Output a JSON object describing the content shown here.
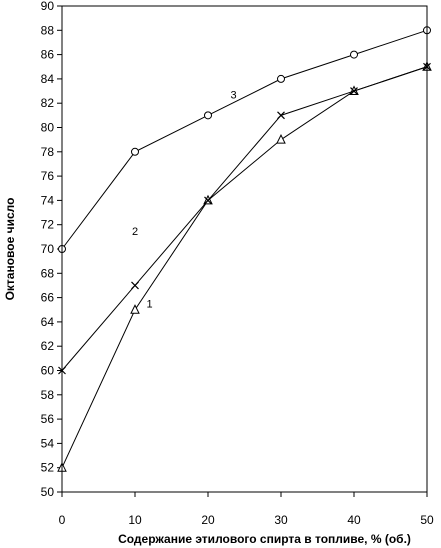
{
  "chart_data": {
    "type": "line",
    "title": "",
    "xlabel": "Содержание этилового спирта в топливе, % (об.)",
    "ylabel": "Октановое число",
    "xlim": [
      0,
      50
    ],
    "ylim": [
      50,
      90
    ],
    "x_ticks": [
      0,
      10,
      20,
      30,
      40,
      50
    ],
    "y_ticks": [
      50,
      52,
      54,
      56,
      58,
      60,
      62,
      64,
      66,
      68,
      70,
      72,
      74,
      76,
      78,
      80,
      82,
      84,
      86,
      88,
      90
    ],
    "grid": "none",
    "x": [
      0,
      10,
      20,
      30,
      40,
      50
    ],
    "series": [
      {
        "label": "1",
        "marker": "triangle",
        "label_at": {
          "x": 12,
          "y": 65.5
        },
        "values": [
          52,
          65,
          74,
          79,
          83,
          85
        ]
      },
      {
        "label": "2",
        "marker": "cross",
        "label_at": {
          "x": 10,
          "y": 71.5
        },
        "values": [
          60,
          67,
          74,
          81,
          83,
          85
        ]
      },
      {
        "label": "3",
        "marker": "circle",
        "label_at": {
          "x": 23.5,
          "y": 82.7
        },
        "values": [
          70,
          78,
          81,
          84,
          86,
          88
        ]
      }
    ],
    "colors": {
      "line": "#000000",
      "marker_fill": "#ffffff"
    }
  }
}
